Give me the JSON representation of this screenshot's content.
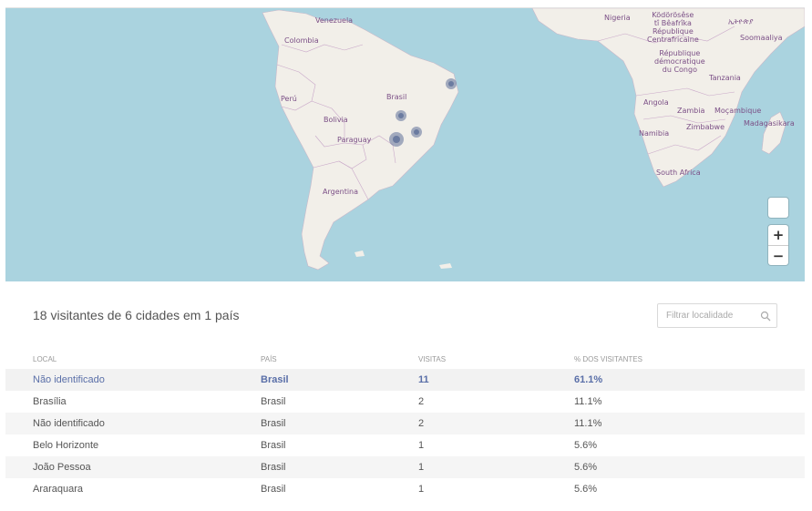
{
  "map": {
    "labels": {
      "venezuela": "Venezuela",
      "colombia": "Colombia",
      "peru": "Perú",
      "brasil": "Brasil",
      "bolivia": "Bolivia",
      "paraguay": "Paraguay",
      "argentina": "Argentina",
      "nigeria": "Nigeria",
      "car": "Ködörösêse\ntî Bêafrîka\nRépublique\nCentrafricaine",
      "ethiopia": "ኢትዮጵያ",
      "somalia": "Soomaaliya",
      "drc": "République\ndémocratique\ndu Congo",
      "tanzania": "Tanzania",
      "angola": "Angola",
      "zambia": "Zambia",
      "mozambique": "Moçambique",
      "madagascar": "Madagasikara",
      "namibia": "Namibia",
      "zimbabwe": "Zimbabwe",
      "south_africa": "South Africa"
    },
    "zoom_in": "+",
    "zoom_out": "−"
  },
  "summary": "18 visitantes de 6 cidades em 1 país",
  "filter": {
    "placeholder": "Filtrar localidade"
  },
  "table": {
    "headers": {
      "local": "LOCAL",
      "pais": "PAÍS",
      "visitas": "VISITAS",
      "pct": "% DOS VISITANTES"
    },
    "rows": [
      {
        "local": "Não identificado",
        "pais": "Brasil",
        "visitas": "11",
        "pct": "61.1%"
      },
      {
        "local": "Brasília",
        "pais": "Brasil",
        "visitas": "2",
        "pct": "11.1%"
      },
      {
        "local": "Não identificado",
        "pais": "Brasil",
        "visitas": "2",
        "pct": "11.1%"
      },
      {
        "local": "Belo Horizonte",
        "pais": "Brasil",
        "visitas": "1",
        "pct": "5.6%"
      },
      {
        "local": "João Pessoa",
        "pais": "Brasil",
        "visitas": "1",
        "pct": "5.6%"
      },
      {
        "local": "Araraquara",
        "pais": "Brasil",
        "visitas": "1",
        "pct": "5.6%"
      }
    ]
  },
  "colors": {
    "ocean": "#aad3df",
    "land": "#f2efe9",
    "marker": "#5e6f99",
    "highlight": "#5a6fa8"
  }
}
